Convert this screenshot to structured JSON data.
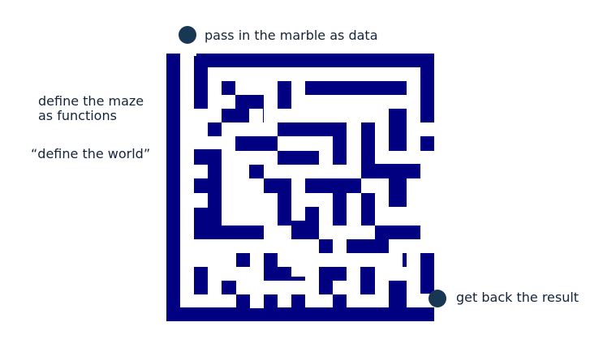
{
  "labels": {
    "start": "pass in the marble as data",
    "maze_line1": "define the maze",
    "maze_line2": "as functions",
    "world": "“define the world”",
    "end": "get back the result"
  },
  "colors": {
    "maze": "#000080",
    "paths": "#ffffff",
    "marble": "#173752",
    "text": "#13243a"
  }
}
